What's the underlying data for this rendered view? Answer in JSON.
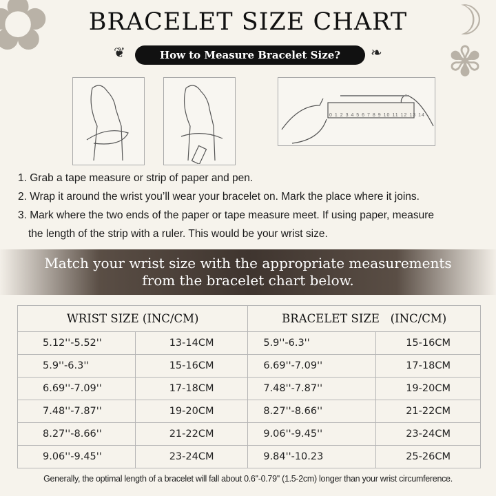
{
  "title": "BRACELET SIZE CHART",
  "subtitle": "How to Measure Bracelet Size?",
  "steps": [
    "1. Grab a tape measure or strip of paper and pen.",
    "2. Wrap it around the wrist you’ll wear your bracelet on. Mark the place where it joins.",
    "3. Mark where the two ends of the paper or tape measure meet. If using paper, measure",
    "the length of the strip with a ruler. This would be your wrist size."
  ],
  "banner": [
    "Match your wrist size with the appropriate measurements",
    "from the bracelet chart below."
  ],
  "table": {
    "headers": [
      "WRIST SIZE (INC/CM)",
      "BRACELET SIZE   (INC/CM)"
    ],
    "rows": [
      [
        "5.12''-5.52''",
        "13-14CM",
        "5.9''-6.3''",
        "15-16CM"
      ],
      [
        "5.9''-6.3''",
        "15-16CM",
        "6.69''-7.09''",
        "17-18CM"
      ],
      [
        "6.69''-7.09''",
        "17-18CM",
        "7.48''-7.87''",
        "19-20CM"
      ],
      [
        "7.48''-7.87''",
        "19-20CM",
        "8.27''-8.66''",
        "21-22CM"
      ],
      [
        "8.27''-8.66''",
        "21-22CM",
        "9.06''-9.45''",
        "23-24CM"
      ],
      [
        "9.06''-9.45''",
        "23-24CM",
        "9.84''-10.23",
        "25-26CM"
      ]
    ]
  },
  "footer": "Generally, the optimal length of a bracelet will fall about 0.6''-0.79'' (1.5-2cm) longer than your wrist circumference.",
  "ruler_labels": [
    "0",
    "1",
    "2",
    "3",
    "4",
    "5",
    "6",
    "7",
    "8",
    "9",
    "10",
    "11",
    "12",
    "13",
    "14"
  ]
}
